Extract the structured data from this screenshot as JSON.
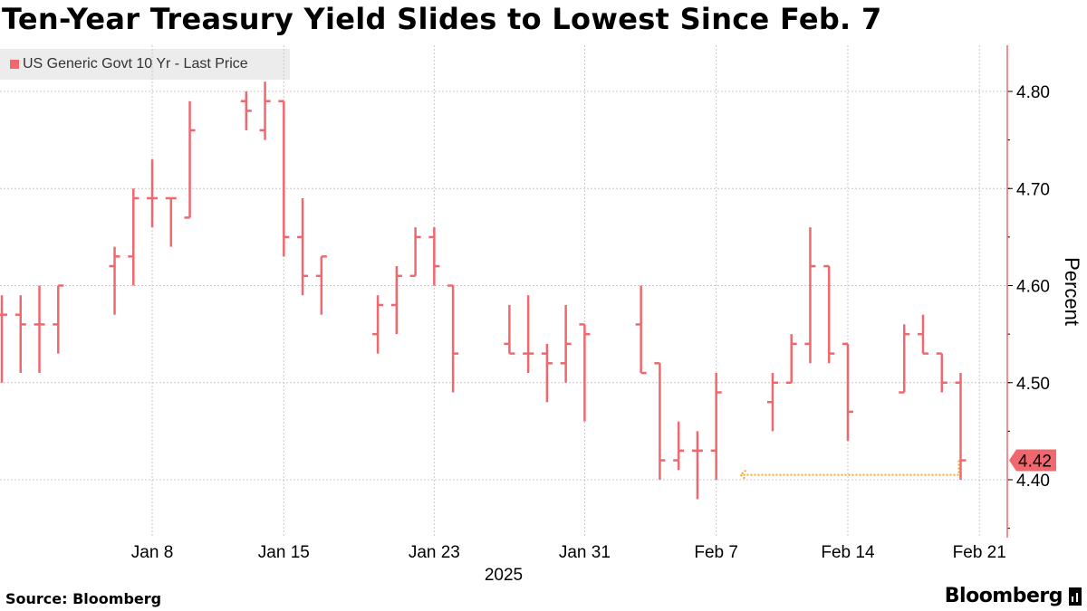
{
  "header": {
    "title": "Ten-Year Treasury Yield Slides to Lowest Since Feb. 7"
  },
  "footer": {
    "source": "Source: Bloomberg",
    "brand": "Bloomberg"
  },
  "colors": {
    "series": "#f0686e",
    "arrow": "#f5a623",
    "grid": "#c8c8c8"
  },
  "icons": {
    "brand": "bloomberg-terminal-icon"
  },
  "chart_data": {
    "type": "ohlc-bar",
    "ylabel": "Percent",
    "xlabel": "2025",
    "ylim": [
      4.34,
      4.85
    ],
    "yticks": [
      4.4,
      4.5,
      4.6,
      4.7,
      4.8
    ],
    "ytick_labels": [
      "4.40",
      "4.50",
      "4.60",
      "4.70",
      "4.80"
    ],
    "xlim": [
      "2024-12-31",
      "2025-02-22"
    ],
    "xticks": [
      "2025-01-08",
      "2025-01-15",
      "2025-01-23",
      "2025-01-31",
      "2025-02-07",
      "2025-02-14",
      "2025-02-21"
    ],
    "xtick_labels": [
      "Jan 8",
      "Jan 15",
      "Jan 23",
      "Jan 31",
      "Feb 7",
      "Feb 14",
      "Feb 21"
    ],
    "grid": true,
    "legend_position": "top-left",
    "last_price_label": "4.42",
    "series": [
      {
        "name": "US Generic Govt 10 Yr - Last Price",
        "bars": [
          {
            "date": "2024-12-31",
            "open": 4.57,
            "high": 4.59,
            "low": 4.5,
            "close": 4.57
          },
          {
            "date": "2025-01-01",
            "open": 4.57,
            "high": 4.59,
            "low": 4.51,
            "close": 4.56
          },
          {
            "date": "2025-01-02",
            "open": 4.56,
            "high": 4.6,
            "low": 4.51,
            "close": 4.56
          },
          {
            "date": "2025-01-03",
            "open": 4.56,
            "high": 4.6,
            "low": 4.53,
            "close": 4.6
          },
          {
            "date": "2025-01-06",
            "open": 4.62,
            "high": 4.64,
            "low": 4.57,
            "close": 4.63
          },
          {
            "date": "2025-01-07",
            "open": 4.63,
            "high": 4.7,
            "low": 4.6,
            "close": 4.69
          },
          {
            "date": "2025-01-08",
            "open": 4.69,
            "high": 4.73,
            "low": 4.66,
            "close": 4.69
          },
          {
            "date": "2025-01-09",
            "open": 4.69,
            "high": 4.69,
            "low": 4.64,
            "close": 4.69
          },
          {
            "date": "2025-01-10",
            "open": 4.67,
            "high": 4.79,
            "low": 4.67,
            "close": 4.76
          },
          {
            "date": "2025-01-13",
            "open": 4.79,
            "high": 4.8,
            "low": 4.76,
            "close": 4.78
          },
          {
            "date": "2025-01-14",
            "open": 4.76,
            "high": 4.81,
            "low": 4.75,
            "close": 4.79
          },
          {
            "date": "2025-01-15",
            "open": 4.79,
            "high": 4.79,
            "low": 4.63,
            "close": 4.65
          },
          {
            "date": "2025-01-16",
            "open": 4.65,
            "high": 4.69,
            "low": 4.59,
            "close": 4.61
          },
          {
            "date": "2025-01-17",
            "open": 4.61,
            "high": 4.63,
            "low": 4.57,
            "close": 4.63
          },
          {
            "date": "2025-01-20",
            "open": 4.55,
            "high": 4.59,
            "low": 4.53,
            "close": 4.58
          },
          {
            "date": "2025-01-21",
            "open": 4.58,
            "high": 4.62,
            "low": 4.55,
            "close": 4.61
          },
          {
            "date": "2025-01-22",
            "open": 4.61,
            "high": 4.66,
            "low": 4.61,
            "close": 4.65
          },
          {
            "date": "2025-01-23",
            "open": 4.65,
            "high": 4.66,
            "low": 4.6,
            "close": 4.62
          },
          {
            "date": "2025-01-24",
            "open": 4.6,
            "high": 4.6,
            "low": 4.49,
            "close": 4.53
          },
          {
            "date": "2025-01-27",
            "open": 4.54,
            "high": 4.58,
            "low": 4.53,
            "close": 4.53
          },
          {
            "date": "2025-01-28",
            "open": 4.53,
            "high": 4.59,
            "low": 4.51,
            "close": 4.53
          },
          {
            "date": "2025-01-29",
            "open": 4.53,
            "high": 4.54,
            "low": 4.48,
            "close": 4.52
          },
          {
            "date": "2025-01-30",
            "open": 4.52,
            "high": 4.58,
            "low": 4.5,
            "close": 4.54
          },
          {
            "date": "2025-01-31",
            "open": 4.56,
            "high": 4.56,
            "low": 4.46,
            "close": 4.55
          },
          {
            "date": "2025-02-03",
            "open": 4.56,
            "high": 4.6,
            "low": 4.51,
            "close": 4.51
          },
          {
            "date": "2025-02-04",
            "open": 4.52,
            "high": 4.52,
            "low": 4.4,
            "close": 4.42
          },
          {
            "date": "2025-02-05",
            "open": 4.42,
            "high": 4.46,
            "low": 4.41,
            "close": 4.43
          },
          {
            "date": "2025-02-06",
            "open": 4.43,
            "high": 4.45,
            "low": 4.38,
            "close": 4.43
          },
          {
            "date": "2025-02-07",
            "open": 4.43,
            "high": 4.51,
            "low": 4.4,
            "close": 4.49
          },
          {
            "date": "2025-02-10",
            "open": 4.48,
            "high": 4.51,
            "low": 4.45,
            "close": 4.5
          },
          {
            "date": "2025-02-11",
            "open": 4.5,
            "high": 4.55,
            "low": 4.5,
            "close": 4.54
          },
          {
            "date": "2025-02-12",
            "open": 4.54,
            "high": 4.66,
            "low": 4.52,
            "close": 4.62
          },
          {
            "date": "2025-02-13",
            "open": 4.62,
            "high": 4.62,
            "low": 4.52,
            "close": 4.53
          },
          {
            "date": "2025-02-14",
            "open": 4.54,
            "high": 4.54,
            "low": 4.44,
            "close": 4.47
          },
          {
            "date": "2025-02-17",
            "open": 4.49,
            "high": 4.56,
            "low": 4.49,
            "close": 4.55
          },
          {
            "date": "2025-02-18",
            "open": 4.55,
            "high": 4.57,
            "low": 4.53,
            "close": 4.53
          },
          {
            "date": "2025-02-19",
            "open": 4.53,
            "high": 4.53,
            "low": 4.49,
            "close": 4.5
          },
          {
            "date": "2025-02-20",
            "open": 4.5,
            "high": 4.51,
            "low": 4.4,
            "close": 4.42
          }
        ]
      }
    ],
    "annotations": [
      {
        "type": "arrow",
        "from": {
          "date": "2025-02-20",
          "value": 4.405
        },
        "to": {
          "date": "2025-02-08",
          "value": 4.405
        }
      }
    ]
  }
}
